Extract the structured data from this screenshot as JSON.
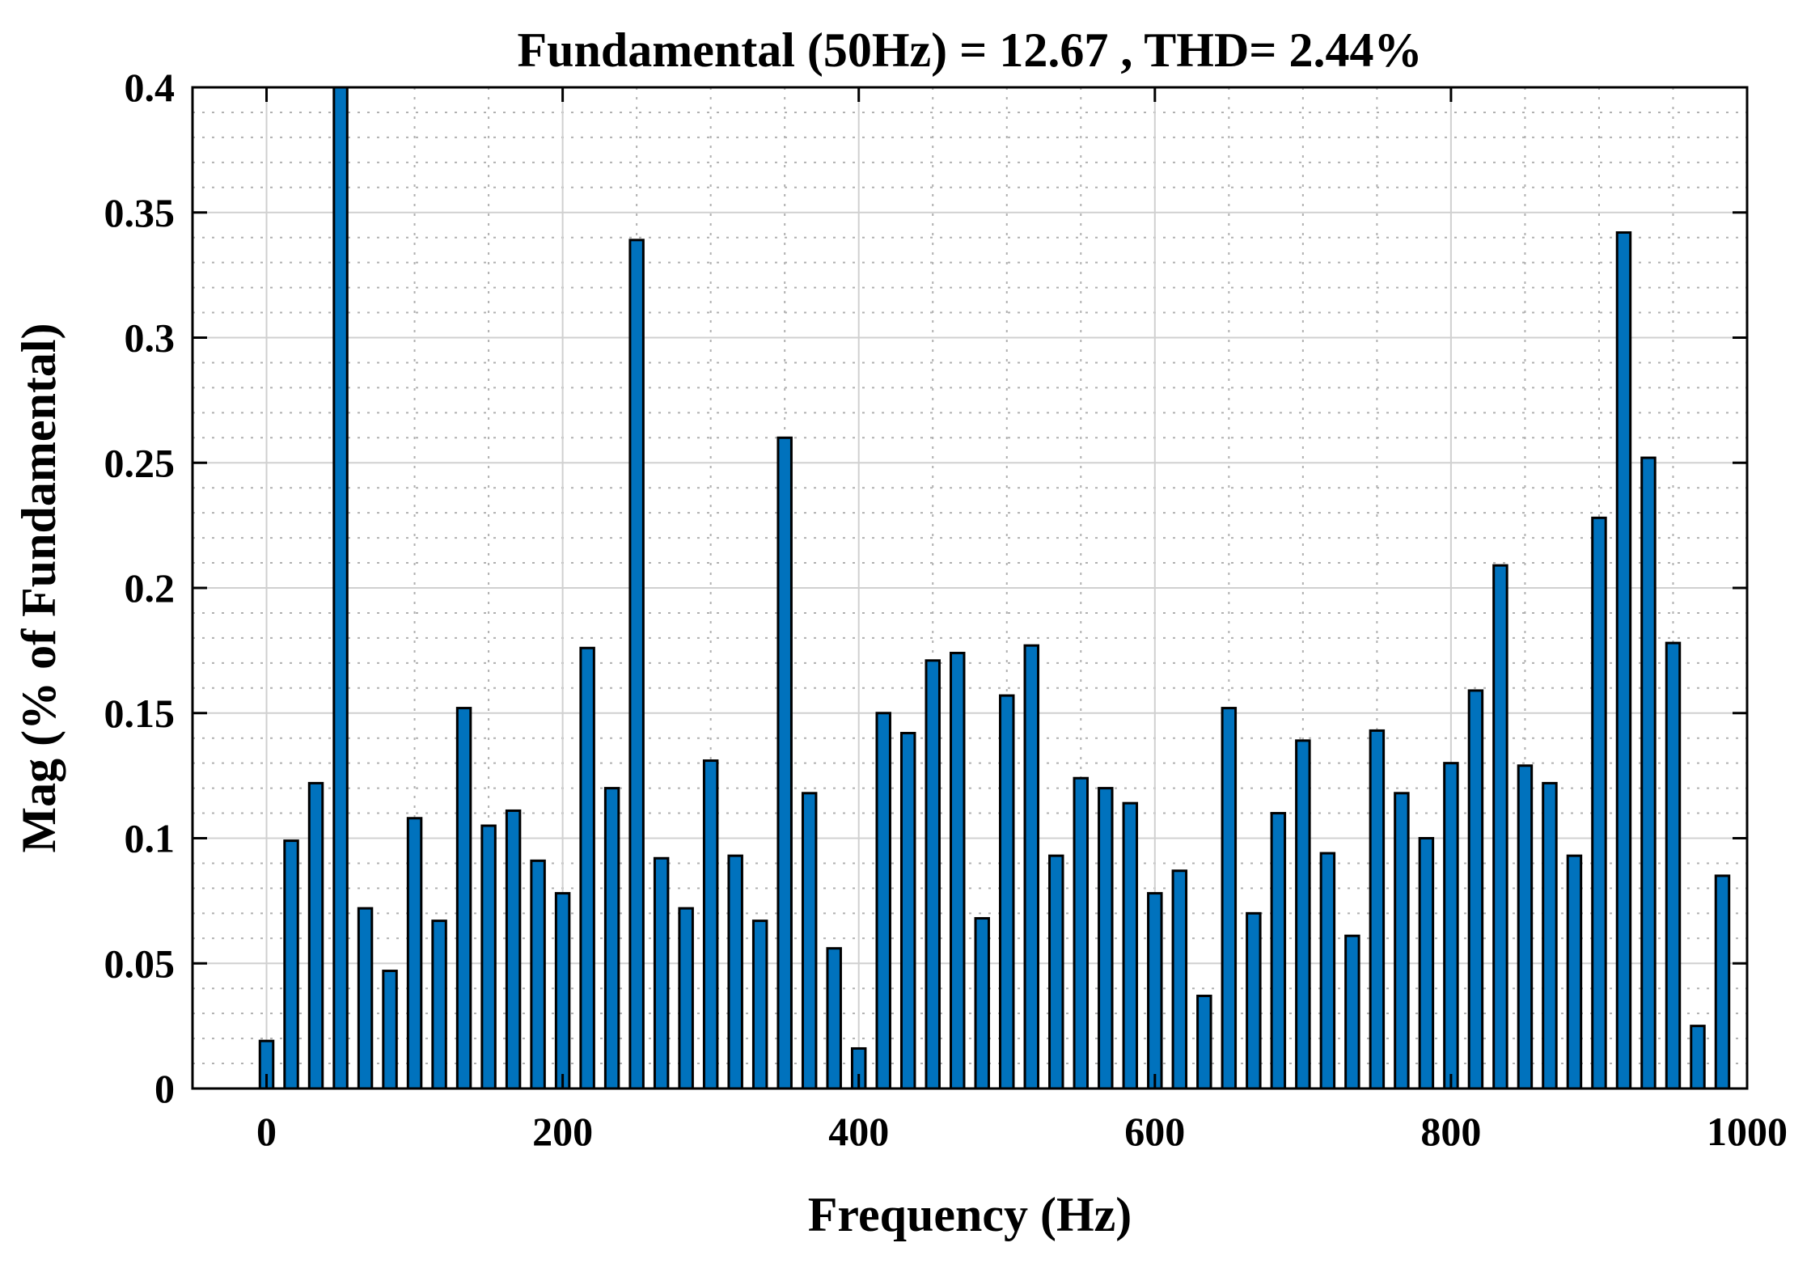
{
  "chart_data": {
    "type": "bar",
    "title": "Fundamental (50Hz) = 12.67 , THD= 2.44%",
    "xlabel": "Frequency (Hz)",
    "ylabel": "Mag (% of Fundamental)",
    "xlim": [
      -50,
      1000
    ],
    "ylim": [
      0,
      0.4
    ],
    "grid": true,
    "minor_grid": true,
    "bar_color": "#0072BD",
    "bar_edge_color": "#000000",
    "bar_width_hz": 9,
    "xticks": [
      0,
      200,
      400,
      600,
      800,
      1000
    ],
    "xtick_labels": [
      "0",
      "200",
      "400",
      "600",
      "800",
      "1000"
    ],
    "yticks": [
      0,
      0.05,
      0.1,
      0.15,
      0.2,
      0.25,
      0.3,
      0.35,
      0.4
    ],
    "ytick_labels": [
      "0",
      "0.05",
      "0.1",
      "0.15",
      "0.2",
      "0.25",
      "0.3",
      "0.35",
      "0.4"
    ],
    "x": [
      0,
      16.67,
      33.33,
      50,
      66.67,
      83.33,
      100,
      116.67,
      133.33,
      150,
      166.67,
      183.33,
      200,
      216.67,
      233.33,
      250,
      266.67,
      283.33,
      300,
      316.67,
      333.33,
      350,
      366.67,
      383.33,
      400,
      416.67,
      433.33,
      450,
      466.67,
      483.33,
      500,
      516.67,
      533.33,
      550,
      566.67,
      583.33,
      600,
      616.67,
      633.33,
      650,
      666.67,
      683.33,
      700,
      716.67,
      733.33,
      750,
      766.67,
      783.33,
      800,
      816.67,
      833.33,
      850,
      866.67,
      883.33,
      900,
      916.67,
      933.33,
      950,
      966.67,
      983.33
    ],
    "values": [
      0.019,
      0.099,
      0.122,
      0.4,
      0.072,
      0.047,
      0.108,
      0.067,
      0.152,
      0.105,
      0.111,
      0.091,
      0.078,
      0.176,
      0.12,
      0.339,
      0.092,
      0.072,
      0.131,
      0.093,
      0.067,
      0.26,
      0.118,
      0.056,
      0.016,
      0.15,
      0.142,
      0.171,
      0.174,
      0.068,
      0.157,
      0.177,
      0.093,
      0.124,
      0.12,
      0.114,
      0.078,
      0.087,
      0.037,
      0.152,
      0.07,
      0.11,
      0.139,
      0.094,
      0.061,
      0.143,
      0.118,
      0.1,
      0.13,
      0.159,
      0.209,
      0.129,
      0.122,
      0.093,
      0.228,
      0.342,
      0.252,
      0.178,
      0.025,
      0.085
    ]
  }
}
